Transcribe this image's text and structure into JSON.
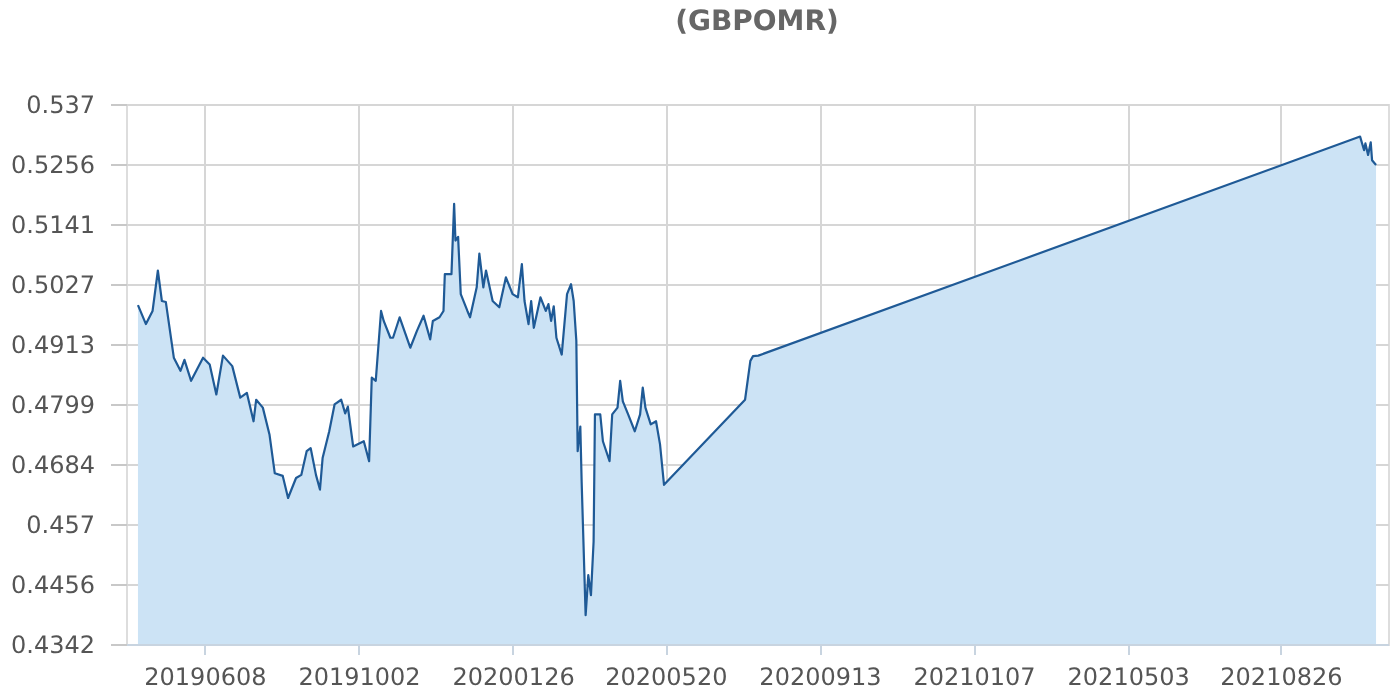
{
  "chart_data": {
    "type": "area",
    "title": "(GBPOMR)",
    "x": [
      "2019-04-19",
      "2019-04-25",
      "2019-04-30",
      "2019-05-04",
      "2019-05-07",
      "2019-05-10",
      "2019-05-16",
      "2019-05-21",
      "2019-05-24",
      "2019-05-29",
      "2019-06-07",
      "2019-06-12",
      "2019-06-17",
      "2019-06-22",
      "2019-06-29",
      "2019-07-05",
      "2019-07-10",
      "2019-07-15",
      "2019-07-17",
      "2019-07-22",
      "2019-07-27",
      "2019-07-31",
      "2019-08-06",
      "2019-08-10",
      "2019-08-16",
      "2019-08-20",
      "2019-08-24",
      "2019-08-27",
      "2019-08-31",
      "2019-09-03",
      "2019-09-05",
      "2019-09-10",
      "2019-09-14",
      "2019-09-19",
      "2019-09-22",
      "2019-09-24",
      "2019-09-28",
      "2019-10-06",
      "2019-10-10",
      "2019-10-12",
      "2019-10-15",
      "2019-10-19",
      "2019-10-21",
      "2019-10-26",
      "2019-10-28",
      "2019-11-02",
      "2019-11-10",
      "2019-11-15",
      "2019-11-20",
      "2019-11-25",
      "2019-11-27",
      "2019-12-02",
      "2019-12-05",
      "2019-12-06",
      "2019-12-11",
      "2019-12-13",
      "2019-12-14",
      "2019-12-16",
      "2019-12-18",
      "2019-12-23",
      "2019-12-25",
      "2019-12-30",
      "2020-01-01",
      "2020-01-04",
      "2020-01-06",
      "2020-01-11",
      "2020-01-16",
      "2020-01-21",
      "2020-01-26",
      "2020-01-30",
      "2020-02-02",
      "2020-02-04",
      "2020-02-07",
      "2020-02-09",
      "2020-02-11",
      "2020-02-16",
      "2020-02-20",
      "2020-02-22",
      "2020-02-24",
      "2020-02-26",
      "2020-02-28",
      "2020-03-03",
      "2020-03-07",
      "2020-03-10",
      "2020-03-12",
      "2020-03-14",
      "2020-03-15",
      "2020-03-17",
      "2020-03-18",
      "2020-03-21",
      "2020-03-23",
      "2020-03-25",
      "2020-03-27",
      "2020-03-28",
      "2020-04-01",
      "2020-04-03",
      "2020-04-08",
      "2020-04-10",
      "2020-04-14",
      "2020-04-16",
      "2020-04-18",
      "2020-04-22",
      "2020-04-27",
      "2020-05-01",
      "2020-05-03",
      "2020-05-05",
      "2020-05-09",
      "2020-05-13",
      "2020-05-16",
      "2020-05-19",
      "2020-07-19",
      "2020-07-23",
      "2020-07-25",
      "2020-07-29",
      "2021-10-25",
      "2021-10-28",
      "2021-10-29",
      "2021-10-31",
      "2021-11-02",
      "2021-11-03",
      "2021-11-06"
    ],
    "series": [
      {
        "color": "#cce3f5",
        "values": [
          0.4987,
          0.4951,
          0.4976,
          0.5053,
          0.4995,
          0.4993,
          0.4887,
          0.4862,
          0.4883,
          0.4843,
          0.4887,
          0.4874,
          0.4817,
          0.4891,
          0.4871,
          0.4811,
          0.482,
          0.4766,
          0.4807,
          0.4792,
          0.4741,
          0.4667,
          0.4662,
          0.462,
          0.4658,
          0.4664,
          0.4709,
          0.4715,
          0.4664,
          0.4636,
          0.4696,
          0.4747,
          0.4798,
          0.4807,
          0.4781,
          0.4794,
          0.4718,
          0.4728,
          0.469,
          0.4849,
          0.4843,
          0.4976,
          0.4957,
          0.4925,
          0.4925,
          0.4964,
          0.4906,
          0.4938,
          0.4967,
          0.4922,
          0.4957,
          0.4964,
          0.4976,
          0.5046,
          0.5046,
          0.518,
          0.511,
          0.5117,
          0.5008,
          0.4976,
          0.4964,
          0.5021,
          0.5085,
          0.5021,
          0.5053,
          0.4995,
          0.4983,
          0.504,
          0.5008,
          0.5002,
          0.5065,
          0.4995,
          0.4951,
          0.4995,
          0.4944,
          0.5002,
          0.4976,
          0.4989,
          0.4957,
          0.4985,
          0.4925,
          0.4893,
          0.5008,
          0.5027,
          0.4995,
          0.4919,
          0.4709,
          0.4756,
          0.4651,
          0.4397,
          0.4473,
          0.4435,
          0.4537,
          0.4779,
          0.4779,
          0.4728,
          0.469,
          0.4779,
          0.4792,
          0.4843,
          0.4804,
          0.4779,
          0.4747,
          0.4779,
          0.483,
          0.4792,
          0.476,
          0.4766,
          0.4722,
          0.4645,
          0.4807,
          0.4881,
          0.489,
          0.4891,
          0.5308,
          0.5282,
          0.5295,
          0.5273,
          0.5297,
          0.5263,
          0.5254
        ]
      }
    ],
    "xlim": [
      "2019-04-10",
      "2021-11-15"
    ],
    "xticks": [
      {
        "value": "2019-06-08",
        "label": "20190608"
      },
      {
        "value": "2019-10-02",
        "label": "20191002"
      },
      {
        "value": "2020-01-26",
        "label": "20200126"
      },
      {
        "value": "2020-05-20",
        "label": "20200520"
      },
      {
        "value": "2020-09-13",
        "label": "20200913"
      },
      {
        "value": "2021-01-07",
        "label": "20210107"
      },
      {
        "value": "2021-05-03",
        "label": "20210503"
      },
      {
        "value": "2021-08-26",
        "label": "20210826"
      }
    ],
    "ylim": [
      0.4342,
      0.537
    ],
    "yticks": [
      0.4342,
      0.4456,
      0.457,
      0.4684,
      0.4799,
      0.4913,
      0.5027,
      0.5141,
      0.5256,
      0.537
    ],
    "grid": true
  }
}
